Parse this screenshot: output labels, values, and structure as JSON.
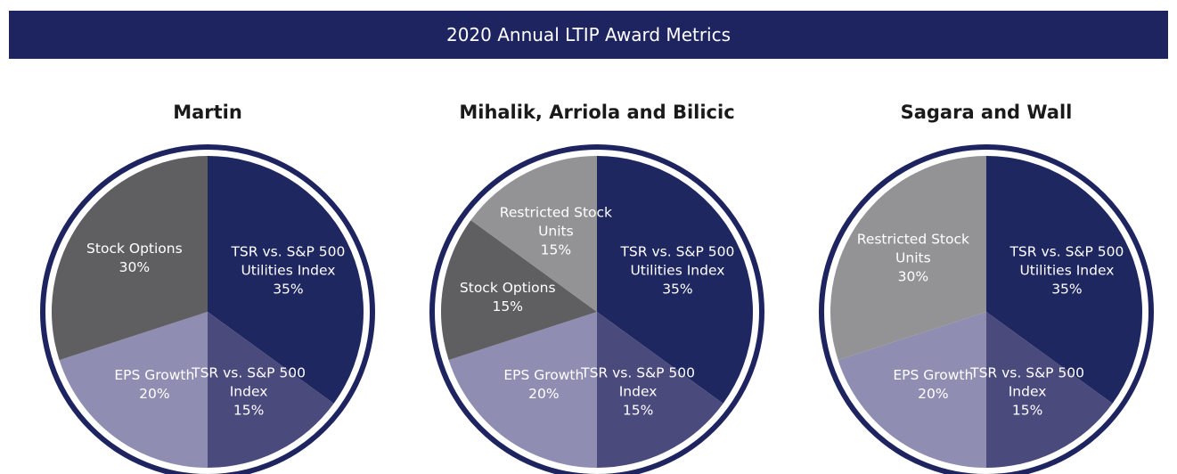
{
  "header": {
    "title": "2020 Annual LTIP Award Metrics"
  },
  "chart_data": [
    {
      "type": "pie",
      "title": "Martin",
      "categories": [
        "TSR vs. S&P 500 Utilities Index",
        "TSR vs. S&P 500 Index",
        "EPS Growth",
        "Stock Options"
      ],
      "values": [
        35,
        15,
        20,
        30
      ],
      "value_labels": [
        "35%",
        "15%",
        "20%",
        "30%"
      ],
      "colors": [
        "#1f2760",
        "#4b4a7c",
        "#8f8db1",
        "#5f5f62"
      ]
    },
    {
      "type": "pie",
      "title": "Mihalik, Arriola and Bilicic",
      "categories": [
        "TSR vs. S&P 500 Utilities Index",
        "TSR vs. S&P 500 Index",
        "EPS Growth",
        "Stock Options",
        "Restricted Stock Units"
      ],
      "values": [
        35,
        15,
        20,
        15,
        15
      ],
      "value_labels": [
        "35%",
        "15%",
        "20%",
        "15%",
        "15%"
      ],
      "colors": [
        "#1f2760",
        "#4b4a7c",
        "#8f8db1",
        "#5f5f62",
        "#939396"
      ]
    },
    {
      "type": "pie",
      "title": "Sagara and Wall",
      "categories": [
        "TSR vs. S&P 500 Utilities Index",
        "TSR vs. S&P 500 Index",
        "EPS Growth",
        "Restricted Stock Units"
      ],
      "values": [
        35,
        15,
        20,
        30
      ],
      "value_labels": [
        "35%",
        "15%",
        "20%",
        "30%"
      ],
      "colors": [
        "#1f2760",
        "#4b4a7c",
        "#8f8db1",
        "#939396"
      ]
    }
  ]
}
